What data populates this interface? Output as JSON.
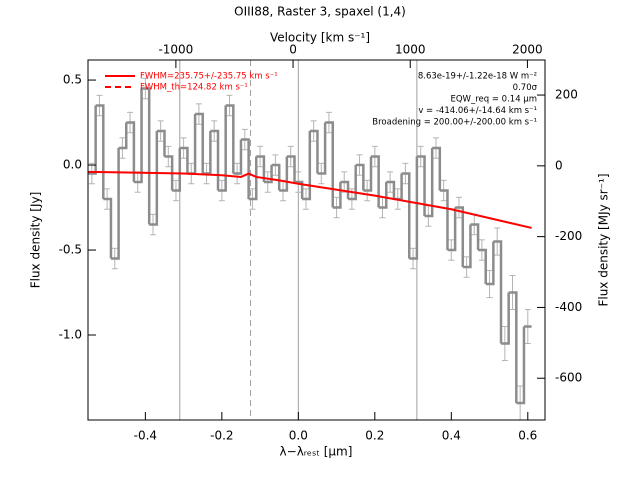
{
  "chart_data": {
    "type": "step",
    "title": "OIII88, Raster 3, spaxel (1,4)",
    "xlabel": "λ−λᵣₑₛₜ [μm]",
    "ylabel": "Flux density [Jy]",
    "y2label": "Flux density [MJy sr⁻¹]",
    "x2label": "Velocity [km s⁻¹]",
    "xlim": [
      -0.55,
      0.645
    ],
    "xticks": [
      -0.4,
      -0.2,
      {
        "value": 0,
        "label": "0.0"
      },
      0.2,
      0.4,
      0.6
    ],
    "ylim": [
      -1.5,
      0.618
    ],
    "yticks": [
      {
        "value": 0.5,
        "label": "0.5"
      },
      {
        "value": 0,
        "label": "0.0"
      },
      {
        "value": -0.5,
        "label": "-0.5"
      },
      {
        "value": -1,
        "label": "-1.0"
      }
    ],
    "y2lim": [
      -718,
      299
    ],
    "y2ticks": [
      200,
      0,
      -200,
      -400,
      -600
    ],
    "x2lim": [
      -1750,
      2150
    ],
    "x2ticks": [
      -1000,
      0,
      1000,
      2000
    ],
    "series": [
      {
        "name": "spectrum",
        "color": "#8c8c8c",
        "errcolor": "#b4b4b4",
        "x": [
          -0.54,
          -0.52,
          -0.5,
          -0.48,
          -0.46,
          -0.44,
          -0.42,
          -0.4,
          -0.38,
          -0.36,
          -0.34,
          -0.32,
          -0.3,
          -0.28,
          -0.26,
          -0.24,
          -0.22,
          -0.2,
          -0.18,
          -0.16,
          -0.14,
          -0.12,
          -0.1,
          -0.08,
          -0.06,
          -0.04,
          -0.02,
          0.0,
          0.02,
          0.04,
          0.06,
          0.08,
          0.1,
          0.12,
          0.14,
          0.16,
          0.18,
          0.2,
          0.22,
          0.24,
          0.26,
          0.28,
          0.3,
          0.32,
          0.34,
          0.36,
          0.38,
          0.4,
          0.42,
          0.44,
          0.46,
          0.48,
          0.5,
          0.52,
          0.54,
          0.56,
          0.58,
          0.6
        ],
        "values": [
          -0.05,
          0.35,
          -0.2,
          -0.55,
          0.1,
          0.25,
          -0.1,
          0.45,
          -0.35,
          0.2,
          0.05,
          -0.15,
          0.1,
          -0.05,
          0.3,
          -0.05,
          0.2,
          -0.15,
          0.35,
          -0.05,
          0.15,
          -0.2,
          0.05,
          -0.1,
          0.0,
          -0.15,
          0.05,
          -0.1,
          -0.2,
          0.2,
          -0.05,
          0.25,
          -0.25,
          -0.1,
          -0.2,
          0.0,
          -0.15,
          0.05,
          -0.25,
          -0.1,
          -0.2,
          -0.05,
          -0.55,
          0.05,
          -0.3,
          0.1,
          -0.15,
          -0.5,
          -0.25,
          -0.6,
          -0.35,
          -0.5,
          -0.7,
          -0.45,
          -1.05,
          -0.75,
          -1.4,
          -0.95
        ],
        "errors": [
          0.06,
          0.06,
          0.06,
          0.06,
          0.06,
          0.06,
          0.06,
          0.06,
          0.06,
          0.06,
          0.06,
          0.06,
          0.06,
          0.06,
          0.06,
          0.06,
          0.06,
          0.06,
          0.06,
          0.06,
          0.06,
          0.06,
          0.06,
          0.06,
          0.06,
          0.06,
          0.06,
          0.06,
          0.06,
          0.06,
          0.06,
          0.06,
          0.06,
          0.06,
          0.06,
          0.06,
          0.06,
          0.06,
          0.06,
          0.06,
          0.06,
          0.06,
          0.06,
          0.06,
          0.06,
          0.06,
          0.06,
          0.06,
          0.06,
          0.06,
          0.06,
          0.06,
          0.08,
          0.08,
          0.1,
          0.1,
          0.1,
          0.1
        ]
      },
      {
        "name": "fit",
        "color": "#ff0000",
        "x": [
          -0.55,
          -0.3,
          -0.2,
          -0.15,
          -0.13,
          -0.11,
          -0.05,
          0,
          0.2,
          0.4,
          0.61
        ],
        "values": [
          -0.04,
          -0.05,
          -0.06,
          -0.07,
          -0.05,
          -0.07,
          -0.09,
          -0.11,
          -0.18,
          -0.26,
          -0.37
        ]
      }
    ],
    "vlines": [
      {
        "x": -0.31,
        "dashed": false
      },
      {
        "x": -0.125,
        "dashed": true
      },
      {
        "x": 0,
        "dashed": false
      },
      {
        "x": 0.31,
        "dashed": false
      }
    ],
    "legend": [
      {
        "label": "FWHM=235.75+/-235.75 km s⁻¹",
        "dashed": false
      },
      {
        "label": "FWHM_th=124.82 km s⁻¹",
        "dashed": true
      }
    ],
    "annotations": [
      "8.63e-19+/-1.22e-18 W m⁻²",
      "0.70σ",
      "EQW_req = 0.14 μm",
      "v = -414.06+/-14.64 km s⁻¹",
      "Broadening = 200.00+/-200.00 km s⁻¹"
    ]
  }
}
